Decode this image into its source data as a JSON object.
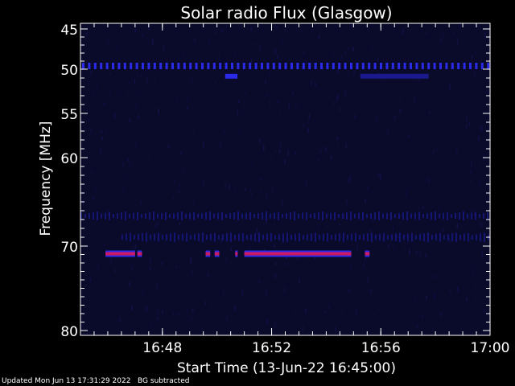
{
  "chart_data": {
    "type": "heatmap",
    "title": "Solar radio Flux (Glasgow)",
    "xlabel": "Start Time (13-Jun-22 16:45:00)",
    "ylabel": "Frequency [MHz]",
    "xlim": [
      "16:45",
      "17:00"
    ],
    "ylim": [
      45,
      80
    ],
    "y_axis_inverted": true,
    "y_ticks": [
      "45",
      "50",
      "55",
      "60",
      "70",
      "80"
    ],
    "x_ticks": [
      "16:48",
      "16:52",
      "16:56",
      "17:00"
    ],
    "background_color": "#0a0a2a",
    "colors": {
      "weak_emission": "#1a1a8c",
      "medium_emission": "#2a2ae8",
      "strong_emission": "#cc1a66"
    },
    "features": [
      {
        "kind": "carrier_line",
        "frequency_mhz": 49.6,
        "start": "16:45",
        "end": "17:00",
        "intensity": "medium"
      },
      {
        "kind": "segment",
        "frequency_mhz": 50.8,
        "start": "16:50:18",
        "end": "16:50:45",
        "intensity": "medium"
      },
      {
        "kind": "segment",
        "frequency_mhz": 50.8,
        "start": "16:55:15",
        "end": "16:57:45",
        "intensity": "weak"
      },
      {
        "kind": "band",
        "frequency_mhz": 66.6,
        "start": "16:45",
        "end": "17:00",
        "intensity": "weak"
      },
      {
        "kind": "band",
        "frequency_mhz": 69.0,
        "start": "16:46:30",
        "end": "17:00",
        "intensity": "weak"
      },
      {
        "kind": "segment",
        "frequency_mhz": 70.9,
        "start": "16:45:55",
        "end": "16:47:00",
        "intensity": "strong"
      },
      {
        "kind": "segment",
        "frequency_mhz": 70.9,
        "start": "16:47:05",
        "end": "16:47:15",
        "intensity": "strong"
      },
      {
        "kind": "segment",
        "frequency_mhz": 70.9,
        "start": "16:49:35",
        "end": "16:49:45",
        "intensity": "strong"
      },
      {
        "kind": "segment",
        "frequency_mhz": 70.9,
        "start": "16:49:55",
        "end": "16:50:05",
        "intensity": "strong"
      },
      {
        "kind": "segment",
        "frequency_mhz": 70.9,
        "start": "16:50:40",
        "end": "16:50:45",
        "intensity": "strong"
      },
      {
        "kind": "segment",
        "frequency_mhz": 70.9,
        "start": "16:51:00",
        "end": "16:54:55",
        "intensity": "strong"
      },
      {
        "kind": "segment",
        "frequency_mhz": 70.9,
        "start": "16:55:25",
        "end": "16:55:35",
        "intensity": "strong"
      }
    ]
  },
  "footer": {
    "updated": "Updated Mon Jun 13 17:31:29 2022",
    "note": "BG subtracted"
  }
}
